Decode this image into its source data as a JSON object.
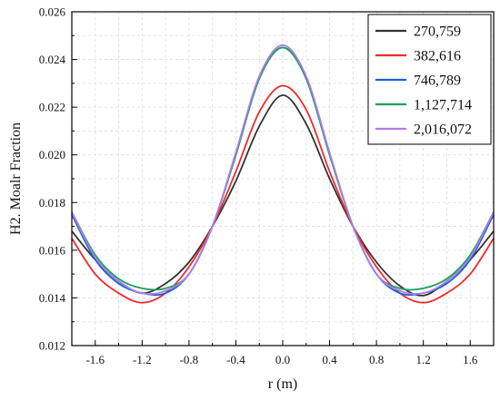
{
  "chart_data": {
    "type": "line",
    "title": "",
    "xlabel": "r (m)",
    "ylabel": "H2. Moalr Fraction",
    "xlim": [
      -1.8,
      1.8
    ],
    "ylim": [
      0.012,
      0.026
    ],
    "xticks": [
      -1.6,
      -1.2,
      -0.8,
      -0.4,
      0.0,
      0.4,
      0.8,
      1.2,
      1.6
    ],
    "xtick_labels": [
      "-1.6",
      "-1.2",
      "-0.8",
      "-0.4",
      "0.0",
      "0.4",
      "0.8",
      "1.2",
      "1.6"
    ],
    "yticks": [
      0.012,
      0.014,
      0.016,
      0.018,
      0.02,
      0.022,
      0.024,
      0.026
    ],
    "ytick_labels": [
      "0.012",
      "0.014",
      "0.016",
      "0.018",
      "0.020",
      "0.022",
      "0.024",
      "0.026"
    ],
    "grid": true,
    "legend_position": "top-right",
    "x": [
      -1.8,
      -1.6,
      -1.4,
      -1.2,
      -1.0,
      -0.8,
      -0.6,
      -0.4,
      -0.2,
      0.0,
      0.2,
      0.4,
      0.6,
      0.8,
      1.0,
      1.2,
      1.4,
      1.6,
      1.8
    ],
    "series": [
      {
        "name": "270,759",
        "color": "#333333",
        "values": [
          0.0168,
          0.0156,
          0.0147,
          0.0142,
          0.0146,
          0.0155,
          0.017,
          0.0189,
          0.0212,
          0.0225,
          0.0213,
          0.019,
          0.017,
          0.0155,
          0.0145,
          0.0141,
          0.0147,
          0.0156,
          0.0168
        ]
      },
      {
        "name": "382,616",
        "color": "#ee2b2b",
        "values": [
          0.0165,
          0.015,
          0.0142,
          0.0138,
          0.0142,
          0.0153,
          0.017,
          0.0193,
          0.0218,
          0.0229,
          0.0219,
          0.0193,
          0.017,
          0.0153,
          0.0142,
          0.0138,
          0.0142,
          0.015,
          0.0165
        ]
      },
      {
        "name": "746,789",
        "color": "#1c5fd6",
        "values": [
          0.0175,
          0.0156,
          0.0146,
          0.0142,
          0.0142,
          0.015,
          0.017,
          0.02,
          0.0232,
          0.0245,
          0.0232,
          0.02,
          0.017,
          0.015,
          0.0142,
          0.0142,
          0.0146,
          0.0156,
          0.0175
        ]
      },
      {
        "name": "1,127,714",
        "color": "#1aa15a",
        "values": [
          0.0176,
          0.0158,
          0.0148,
          0.0144,
          0.0144,
          0.015,
          0.017,
          0.02,
          0.0232,
          0.0245,
          0.0232,
          0.02,
          0.017,
          0.015,
          0.0144,
          0.0144,
          0.0148,
          0.0158,
          0.0176
        ]
      },
      {
        "name": "2,016,072",
        "color": "#b07ce8",
        "values": [
          0.0176,
          0.0157,
          0.0147,
          0.0142,
          0.0143,
          0.015,
          0.017,
          0.0201,
          0.0233,
          0.0246,
          0.0233,
          0.0201,
          0.017,
          0.015,
          0.0143,
          0.0142,
          0.0147,
          0.0157,
          0.0176
        ]
      }
    ]
  }
}
